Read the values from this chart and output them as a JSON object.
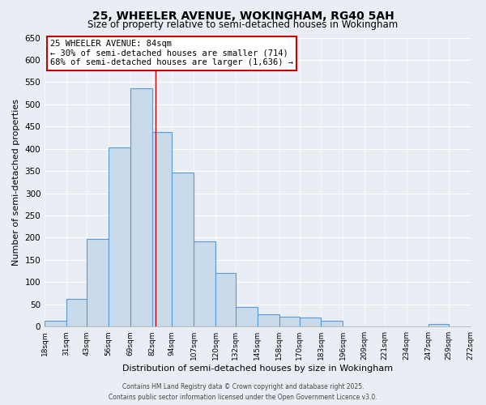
{
  "title": "25, WHEELER AVENUE, WOKINGHAM, RG40 5AH",
  "subtitle": "Size of property relative to semi-detached houses in Wokingham",
  "xlabel": "Distribution of semi-detached houses by size in Wokingham",
  "ylabel": "Number of semi-detached properties",
  "bin_edges": [
    18,
    31,
    43,
    56,
    69,
    82,
    94,
    107,
    120,
    132,
    145,
    158,
    170,
    183,
    196,
    209,
    221,
    234,
    247,
    259,
    272
  ],
  "bin_labels": [
    "18sqm",
    "31sqm",
    "43sqm",
    "56sqm",
    "69sqm",
    "82sqm",
    "94sqm",
    "107sqm",
    "120sqm",
    "132sqm",
    "145sqm",
    "158sqm",
    "170sqm",
    "183sqm",
    "196sqm",
    "209sqm",
    "221sqm",
    "234sqm",
    "247sqm",
    "259sqm",
    "272sqm"
  ],
  "counts": [
    13,
    63,
    198,
    403,
    536,
    437,
    347,
    192,
    120,
    45,
    27,
    22,
    20,
    13,
    0,
    0,
    0,
    0,
    5,
    0
  ],
  "bar_color": "#c9daea",
  "bar_edge_color": "#5b9bd5",
  "property_line_x": 84,
  "annotation_title": "25 WHEELER AVENUE: 84sqm",
  "annotation_line1": "← 30% of semi-detached houses are smaller (714)",
  "annotation_line2": "68% of semi-detached houses are larger (1,636) →",
  "annotation_box_facecolor": "#ffffff",
  "annotation_box_edgecolor": "#cc0000",
  "vline_color": "#cc0000",
  "ylim": [
    0,
    650
  ],
  "yticks": [
    0,
    50,
    100,
    150,
    200,
    250,
    300,
    350,
    400,
    450,
    500,
    550,
    600,
    650
  ],
  "footer1": "Contains HM Land Registry data © Crown copyright and database right 2025.",
  "footer2": "Contains public sector information licensed under the Open Government Licence v3.0.",
  "bg_color": "#e8eef4",
  "plot_bg_color": "#e8eef4",
  "grid_color": "#ffffff"
}
